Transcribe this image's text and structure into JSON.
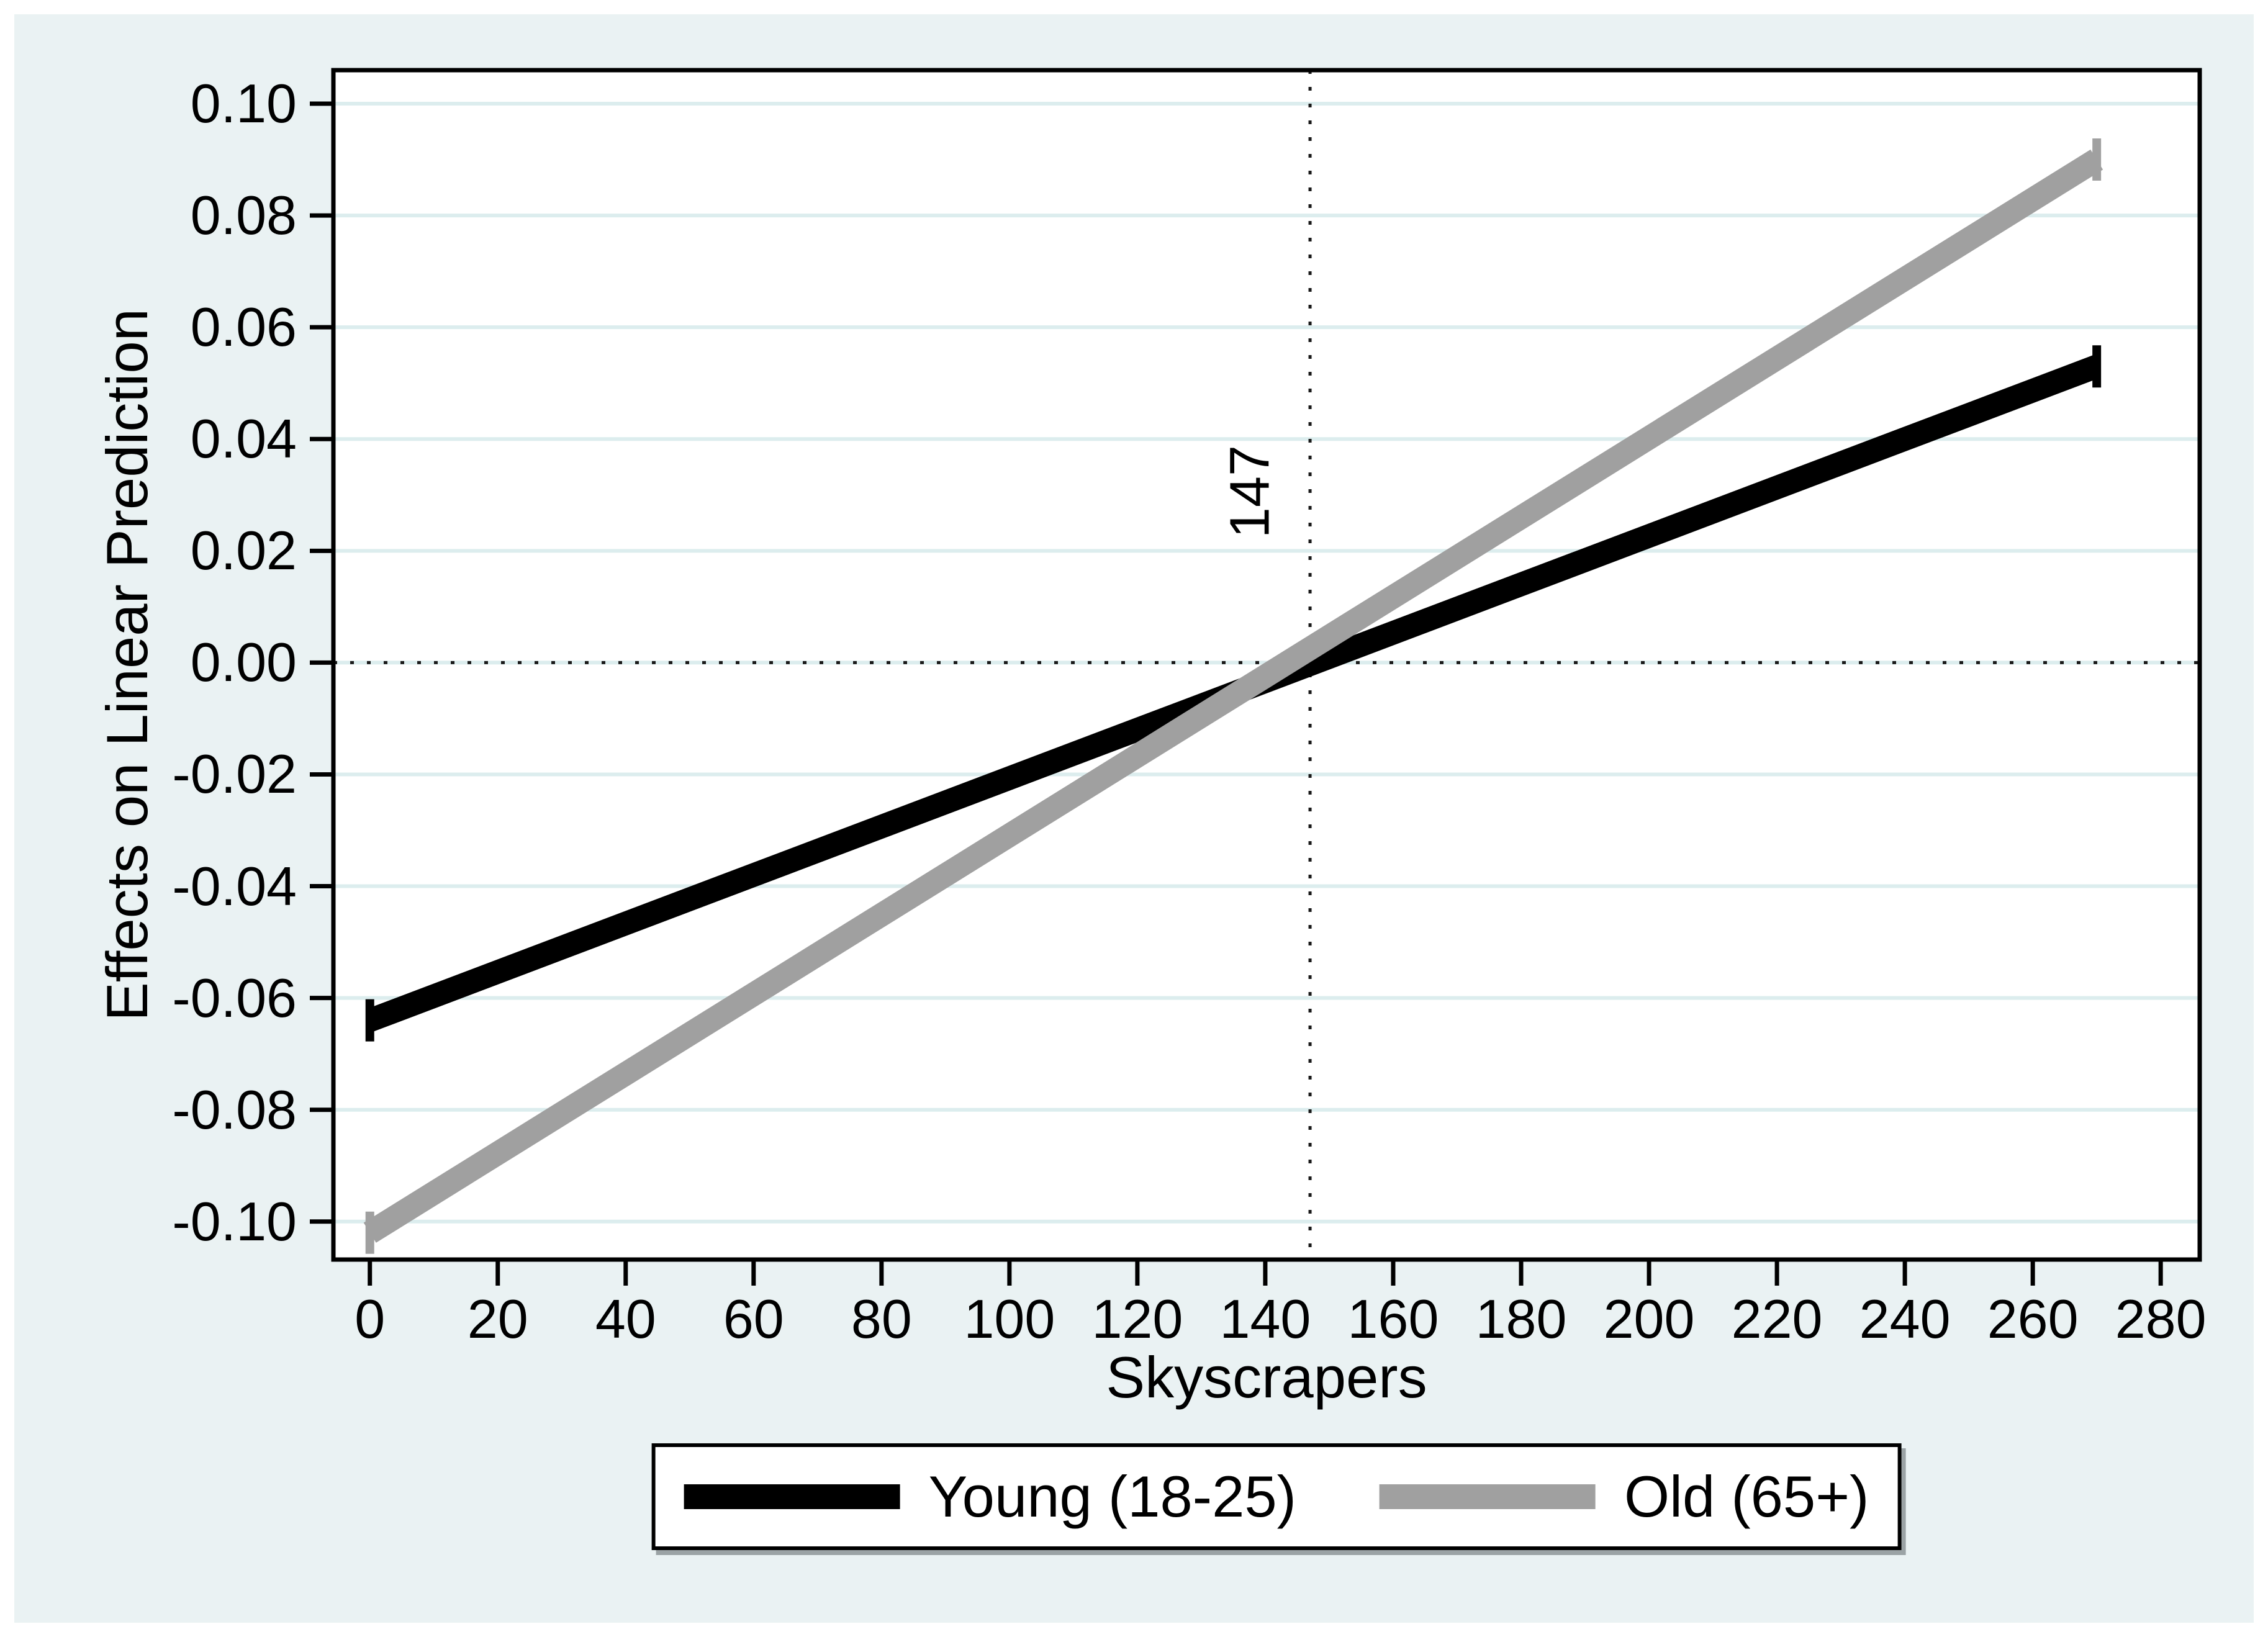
{
  "figure": {
    "page_color": "#ffffff",
    "region_color": "#eaf2f3",
    "plot_background": "#ffffff",
    "axis_color": "#000000",
    "text_color": "#000000"
  },
  "chart_data": {
    "type": "line",
    "title": "",
    "xlabel": "Skyscrapers",
    "ylabel": "Effects on Linear Prediction",
    "x_range": [
      -5.7,
      286.1
    ],
    "y_range": [
      -0.1068,
      0.106
    ],
    "x_ticks": [
      0,
      20,
      40,
      60,
      80,
      100,
      120,
      140,
      160,
      180,
      200,
      220,
      240,
      260,
      280
    ],
    "x_tick_labels": [
      "0",
      "20",
      "40",
      "60",
      "80",
      "100",
      "120",
      "140",
      "160",
      "180",
      "200",
      "220",
      "240",
      "260",
      "280"
    ],
    "y_ticks": [
      0.1,
      0.08,
      0.06,
      0.04,
      0.02,
      0.0,
      -0.02,
      -0.04,
      -0.06,
      -0.08,
      -0.1
    ],
    "y_tick_labels": [
      "0.10",
      "0.08",
      "0.06",
      "0.04",
      "0.02",
      "0.00",
      "-0.02",
      "-0.04",
      "-0.06",
      "-0.08",
      "-0.10"
    ],
    "grid": "horizontal",
    "gridline_color": "#dcedee",
    "reference_lines": {
      "horizontal": {
        "y": 0.0,
        "style": "dotted",
        "color": "#1a1a1a"
      },
      "vertical": {
        "x": 147,
        "label": "147",
        "style": "dotted",
        "color": "#1a1a1a"
      }
    },
    "series": [
      {
        "name": "Young (18-25)",
        "color": "#000000",
        "points": [
          [
            0,
            -0.064
          ],
          [
            270,
            0.053
          ]
        ]
      },
      {
        "name": "Old (65+)",
        "color": "#a0a0a0",
        "points": [
          [
            0,
            -0.102
          ],
          [
            270,
            0.09
          ]
        ]
      }
    ],
    "legend": {
      "position": "bottom-center",
      "entries": [
        "Young (18-25)",
        "Old (65+)"
      ]
    }
  }
}
